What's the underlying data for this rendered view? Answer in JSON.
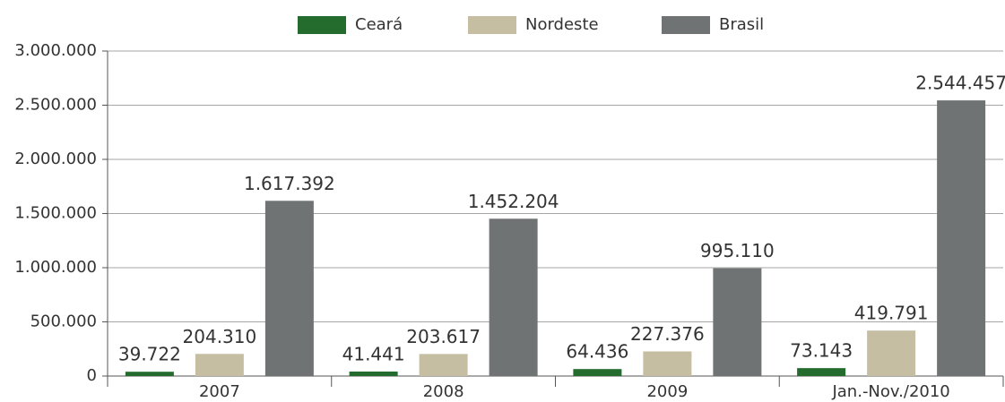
{
  "chart_data": {
    "type": "bar",
    "categories": [
      "2007",
      "2008",
      "2009",
      "Jan.-Nov./2010"
    ],
    "series": [
      {
        "name": "Ceará",
        "color": "#246b2e",
        "values": [
          39722,
          41441,
          64436,
          73143
        ],
        "value_labels": [
          "39.722",
          "41.441",
          "64.436",
          "73.143"
        ]
      },
      {
        "name": "Nordeste",
        "color": "#c5bea3",
        "values": [
          204310,
          203617,
          227376,
          419791
        ],
        "value_labels": [
          "204.310",
          "203.617",
          "227.376",
          "419.791"
        ]
      },
      {
        "name": "Brasil",
        "color": "#6f7374",
        "values": [
          1617392,
          1452204,
          995110,
          2544457
        ],
        "value_labels": [
          "1.617.392",
          "1.452.204",
          "995.110",
          "2.544.457"
        ]
      }
    ],
    "ylim": [
      0,
      3000000
    ],
    "yticks": [
      0,
      {
        "value": 500000,
        "label": "500.000"
      },
      {
        "value": 1000000,
        "label": "1.000.000"
      },
      {
        "value": 1500000,
        "label": "1.500.000"
      },
      {
        "value": 2000000,
        "label": "2.000.000"
      },
      {
        "value": 2500000,
        "label": "2.500.000"
      },
      {
        "value": 3000000,
        "label": "3.000.000"
      }
    ],
    "grid": true,
    "legend": "top"
  }
}
